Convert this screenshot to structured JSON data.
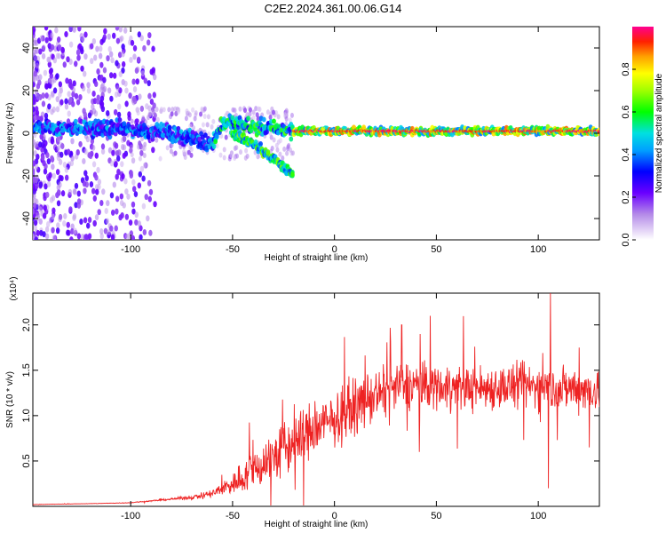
{
  "title": "C2E2.2024.361.00.06.G14",
  "chart_data": [
    {
      "type": "heatmap",
      "xlabel": "Height of straight line (km)",
      "ylabel": "Frequency (Hz)",
      "xlim": [
        -148,
        130
      ],
      "ylim": [
        -50,
        50
      ],
      "x_ticks": [
        -100,
        -50,
        0,
        50,
        100
      ],
      "y_ticks": [
        -40,
        -20,
        0,
        20,
        40
      ],
      "colorbar": {
        "label": "Normalized spectral amplitude",
        "range": [
          0,
          1
        ],
        "ticks": [
          0.0,
          0.2,
          0.4,
          0.6,
          0.8
        ]
      },
      "ridges": [
        {
          "x": [
            -148,
            -100,
            -80,
            -60,
            -55,
            -20,
            0,
            50,
            100,
            130
          ],
          "y": [
            3,
            2,
            0,
            -5,
            5,
            1,
            1,
            1,
            1,
            1
          ]
        },
        {
          "x": [
            -50,
            -40,
            -30,
            -20
          ],
          "y": [
            0,
            -5,
            -12,
            -20
          ]
        }
      ]
    },
    {
      "type": "line",
      "xlabel": "Height of straight line (km)",
      "ylabel": "SNR (10 * v/v)",
      "y_multiplier": "(x10⁴)",
      "xlim": [
        -148,
        130
      ],
      "ylim": [
        0,
        2.35
      ],
      "x_ticks": [
        -100,
        -50,
        0,
        50,
        100
      ],
      "y_ticks": [
        0.5,
        1.0,
        1.5,
        2.0
      ],
      "color": "#ee2222",
      "trend": {
        "x": [
          -148,
          -120,
          -100,
          -90,
          -80,
          -70,
          -60,
          -50,
          -40,
          -30,
          -20,
          -10,
          0,
          10,
          20,
          30,
          40,
          50,
          60,
          70,
          80,
          90,
          100,
          110,
          120,
          130
        ],
        "y": [
          0.02,
          0.03,
          0.04,
          0.06,
          0.08,
          0.1,
          0.14,
          0.25,
          0.4,
          0.55,
          0.7,
          0.85,
          0.95,
          1.1,
          1.22,
          1.3,
          1.35,
          1.33,
          1.32,
          1.3,
          1.32,
          1.32,
          1.33,
          1.3,
          1.3,
          1.28
        ]
      },
      "noise_fraction": [
        0.08,
        0.08,
        0.1,
        0.12,
        0.15,
        0.25,
        0.35,
        0.55,
        0.6,
        0.6,
        0.5,
        0.4,
        0.3,
        0.28,
        0.25,
        0.22,
        0.2,
        0.2,
        0.2,
        0.2,
        0.2,
        0.2,
        0.2,
        0.2,
        0.2,
        0.2
      ],
      "peaks": [
        {
          "x": 33,
          "y": 2.0
        },
        {
          "x": 42,
          "y": 1.9
        },
        {
          "x": 47,
          "y": 2.1
        },
        {
          "x": 106,
          "y": 2.35
        },
        {
          "x": 120,
          "y": 1.75
        },
        {
          "x": 105,
          "y": 0.2
        },
        {
          "x": 125,
          "y": 0.65
        }
      ]
    }
  ]
}
